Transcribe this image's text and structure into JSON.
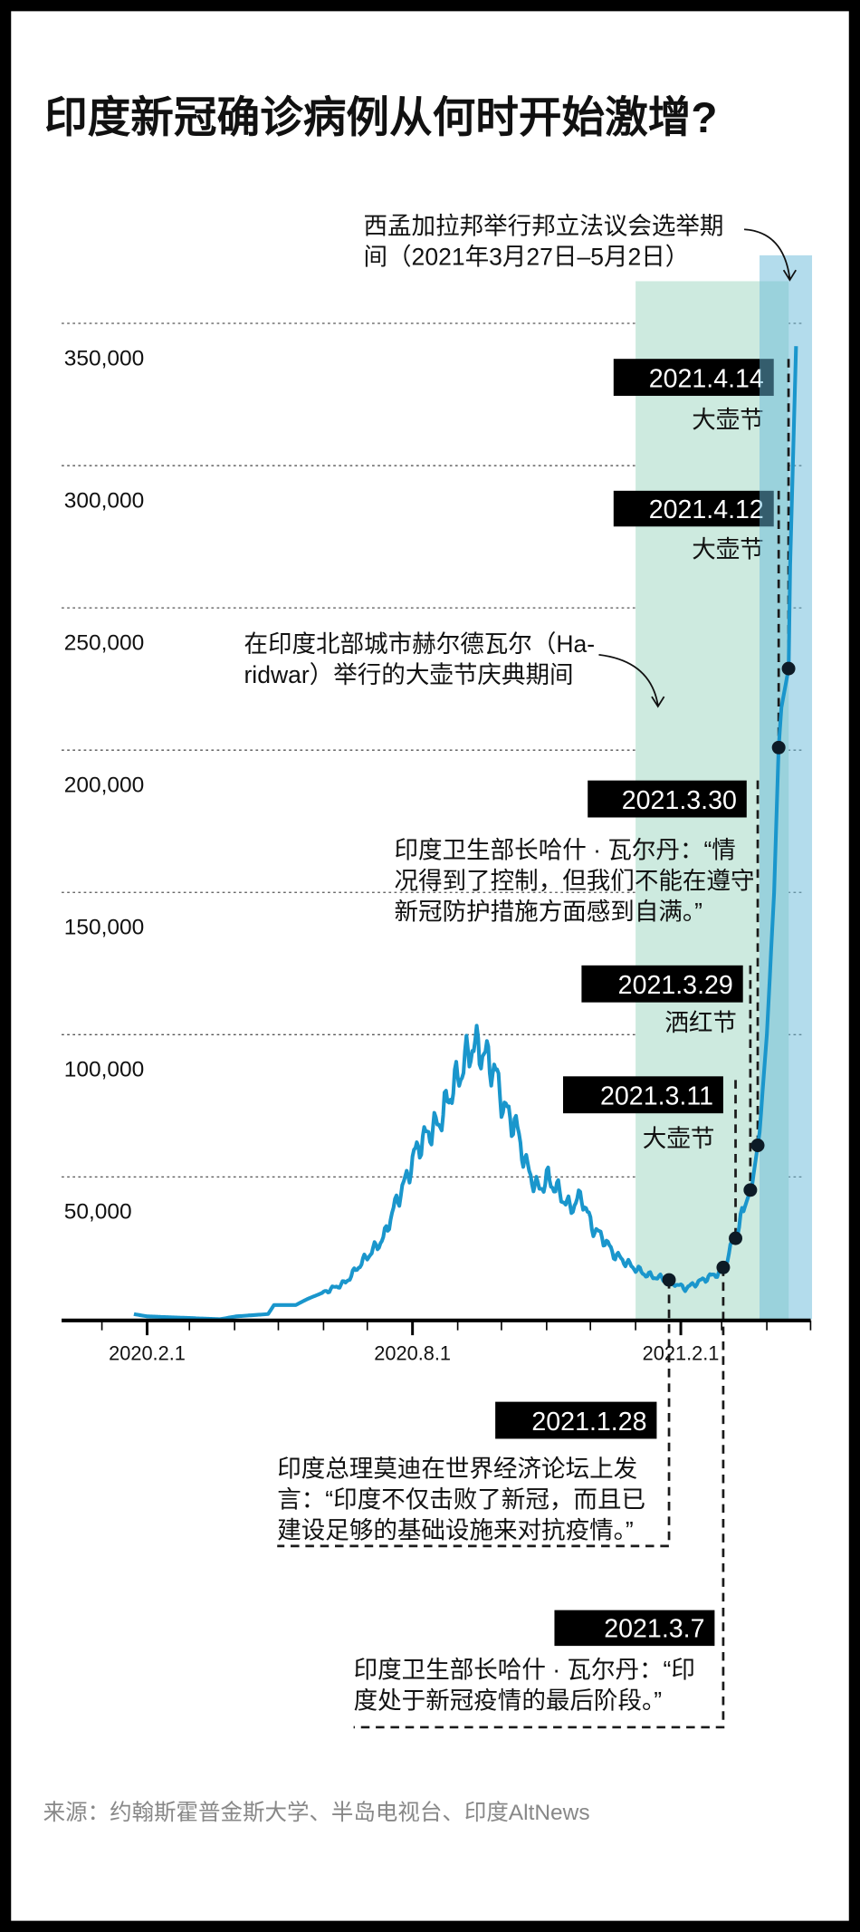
{
  "title": "印度新冠确诊病例从何时开始激增?",
  "source": "来源：约翰斯霍普金斯大学、半岛电视台、印度AltNews",
  "colors": {
    "line": "#1a96cc",
    "kumbh_band": "#cdeadf",
    "election_band": "#67b9d9",
    "dot": "#0d1b26",
    "label_box": "#000000"
  },
  "chart_data": {
    "type": "line",
    "title": "印度新冠确诊病例从何时开始激增?",
    "xlabel": "",
    "ylabel": "",
    "x_ticks": [
      {
        "date": "2020-02-01",
        "label": "2020.2.1"
      },
      {
        "date": "2020-08-01",
        "label": "2020.8.1"
      },
      {
        "date": "2021-02-01",
        "label": "2021.2.1"
      }
    ],
    "y_ticks": [
      {
        "value": 50000,
        "label": "50,000"
      },
      {
        "value": 100000,
        "label": "100,000"
      },
      {
        "value": 150000,
        "label": "150,000"
      },
      {
        "value": 200000,
        "label": "200,000"
      },
      {
        "value": 250000,
        "label": "250,000"
      },
      {
        "value": 300000,
        "label": "300,000"
      },
      {
        "value": 350000,
        "label": "350,000"
      }
    ],
    "ylim": [
      0,
      350000
    ],
    "grid": "horizontal dotted",
    "series": [
      {
        "points": [
          [
            "2020-01-23",
            1800
          ],
          [
            "2020-02-01",
            1000
          ],
          [
            "2020-03-22",
            0
          ],
          [
            "2020-04-02",
            1000
          ],
          [
            "2020-04-24",
            1800
          ],
          [
            "2020-04-28",
            5000
          ],
          [
            "2020-05-13",
            5000
          ],
          [
            "2020-05-21",
            7100
          ],
          [
            "2020-06-05",
            10300
          ],
          [
            "2020-06-16",
            12900
          ],
          [
            "2020-06-27",
            19800
          ],
          [
            "2020-07-12",
            28300
          ],
          [
            "2020-07-20",
            40000
          ],
          [
            "2020-07-28",
            49600
          ],
          [
            "2020-08-04",
            60000
          ],
          [
            "2020-08-12",
            65600
          ],
          [
            "2020-08-19",
            68800
          ],
          [
            "2020-08-27",
            79400
          ],
          [
            "2020-09-03",
            86800
          ],
          [
            "2020-09-11",
            96300
          ],
          [
            "2020-09-18",
            94000
          ],
          [
            "2020-09-26",
            87900
          ],
          [
            "2020-10-03",
            74000
          ],
          [
            "2020-10-11",
            67700
          ],
          [
            "2020-10-18",
            53900
          ],
          [
            "2020-10-26",
            45400
          ],
          [
            "2020-11-02",
            49600
          ],
          [
            "2020-11-10",
            44300
          ],
          [
            "2020-11-17",
            39000
          ],
          [
            "2020-11-25",
            43200
          ],
          [
            "2020-12-02",
            32500
          ],
          [
            "2020-12-10",
            28300
          ],
          [
            "2020-12-17",
            23000
          ],
          [
            "2020-12-29",
            18700
          ],
          [
            "2021-01-09",
            15500
          ],
          [
            "2021-01-22",
            14000
          ],
          [
            "2021-02-04",
            10800
          ],
          [
            "2021-02-19",
            14500
          ],
          [
            "2021-03-01",
            16700
          ],
          [
            "2021-03-10",
            28300
          ],
          [
            "2021-03-22",
            47500
          ],
          [
            "2021-03-27",
            65600
          ],
          [
            "2021-04-01",
            100000
          ],
          [
            "2021-04-06",
            150000
          ],
          [
            "2021-04-09",
            200000
          ],
          [
            "2021-04-11",
            215000
          ],
          [
            "2021-04-16",
            229000
          ],
          [
            "2021-04-17",
            265000
          ],
          [
            "2021-04-21",
            342000
          ]
        ]
      }
    ],
    "shaded_periods": [
      {
        "name": "kumbh",
        "start": "2021-01-01",
        "end": "2021-04-16",
        "color": "#cdeadf"
      },
      {
        "name": "election",
        "start": "2021-03-27",
        "end": "2021-05-02",
        "color": "#67b9d9"
      }
    ],
    "annotations": {
      "election": [
        "西孟加拉邦举行邦立法议会选举期",
        "间（2021年3月27日–5月2日）"
      ],
      "kumbh": [
        "在印度北部城市赫尔德瓦尔（Ha-",
        "ridwar）举行的大壶节庆典期间"
      ]
    },
    "events": [
      {
        "date": "2021.4.14",
        "caption": [
          "大壶节"
        ]
      },
      {
        "date": "2021.4.12",
        "caption": [
          "大壶节"
        ]
      },
      {
        "date": "2021.3.30",
        "caption": [
          "印度卫生部长哈什 · 瓦尔丹：“情",
          "况得到了控制，但我们不能在遵守",
          "新冠防护措施方面感到自满。”"
        ]
      },
      {
        "date": "2021.3.29",
        "caption": [
          "洒红节"
        ]
      },
      {
        "date": "2021.3.11",
        "caption": [
          "大壶节"
        ]
      },
      {
        "date": "2021.1.28",
        "caption": [
          "印度总理莫迪在世界经济论坛上发",
          "言：“印度不仅击败了新冠，而且已",
          "建设足够的基础设施来对抗疫情。”"
        ]
      },
      {
        "date": "2021.3.7",
        "caption": [
          "印度卫生部长哈什 · 瓦尔丹：“印",
          "度处于新冠疫情的最后阶段。”"
        ]
      }
    ]
  }
}
